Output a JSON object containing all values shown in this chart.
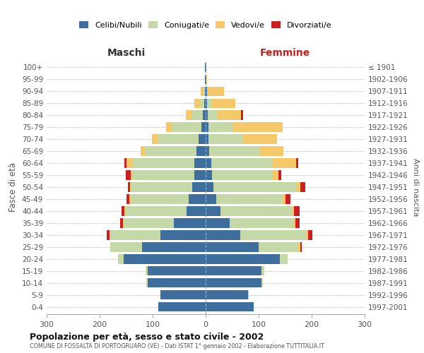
{
  "age_groups": [
    "0-4",
    "5-9",
    "10-14",
    "15-19",
    "20-24",
    "25-29",
    "30-34",
    "35-39",
    "40-44",
    "45-49",
    "50-54",
    "55-59",
    "60-64",
    "65-69",
    "70-74",
    "75-79",
    "80-84",
    "85-89",
    "90-94",
    "95-99",
    "100+"
  ],
  "birth_years": [
    "1997-2001",
    "1992-1996",
    "1987-1991",
    "1982-1986",
    "1977-1981",
    "1972-1976",
    "1967-1971",
    "1962-1966",
    "1957-1961",
    "1952-1956",
    "1947-1951",
    "1942-1946",
    "1937-1941",
    "1932-1936",
    "1927-1931",
    "1922-1926",
    "1917-1921",
    "1912-1916",
    "1907-1911",
    "1902-1906",
    "≤ 1901"
  ],
  "colors": {
    "celibi": "#3e6e9e",
    "coniugati": "#c5d9a8",
    "vedovi": "#f5c96a",
    "divorziati": "#cc2020"
  },
  "maschi": {
    "celibi": [
      90,
      85,
      110,
      110,
      155,
      120,
      85,
      60,
      36,
      32,
      25,
      22,
      22,
      18,
      14,
      8,
      5,
      3,
      2,
      1,
      1
    ],
    "coniugati": [
      0,
      1,
      2,
      3,
      10,
      60,
      95,
      95,
      115,
      110,
      115,
      115,
      115,
      95,
      75,
      55,
      22,
      8,
      3,
      0,
      0
    ],
    "vedovi": [
      0,
      0,
      0,
      0,
      0,
      0,
      1,
      1,
      2,
      2,
      3,
      4,
      12,
      10,
      12,
      12,
      10,
      10,
      5,
      0,
      0
    ],
    "divorziati": [
      0,
      0,
      0,
      0,
      0,
      0,
      6,
      6,
      6,
      6,
      4,
      10,
      4,
      0,
      0,
      0,
      0,
      0,
      0,
      0,
      0
    ]
  },
  "femmine": {
    "celibi": [
      90,
      80,
      105,
      105,
      140,
      100,
      65,
      45,
      28,
      20,
      15,
      12,
      10,
      7,
      5,
      5,
      4,
      3,
      2,
      1,
      1
    ],
    "coniugati": [
      0,
      1,
      3,
      5,
      15,
      75,
      125,
      120,
      135,
      125,
      155,
      115,
      115,
      95,
      65,
      45,
      18,
      8,
      2,
      0,
      0
    ],
    "vedovi": [
      0,
      0,
      0,
      0,
      0,
      3,
      3,
      4,
      4,
      5,
      8,
      10,
      45,
      45,
      65,
      95,
      45,
      45,
      30,
      2,
      0
    ],
    "divorziati": [
      0,
      0,
      0,
      0,
      0,
      3,
      8,
      8,
      10,
      10,
      10,
      6,
      5,
      0,
      0,
      0,
      3,
      0,
      0,
      0,
      0
    ]
  },
  "title": "Popolazione per età, sesso e stato civile - 2002",
  "subtitle": "COMUNE DI FOSSALTA DI PORTOGRUARO (VE) - Dati ISTAT 1° gennaio 2002 - Elaborazione TUTTITALIA.IT",
  "ylabel_left": "Fasce di età",
  "ylabel_right": "Anni di nascita",
  "xlabel_left": "Maschi",
  "xlabel_right": "Femmine",
  "xlim": 300,
  "bg_color": "#ffffff",
  "grid_color": "#bbbbbb"
}
